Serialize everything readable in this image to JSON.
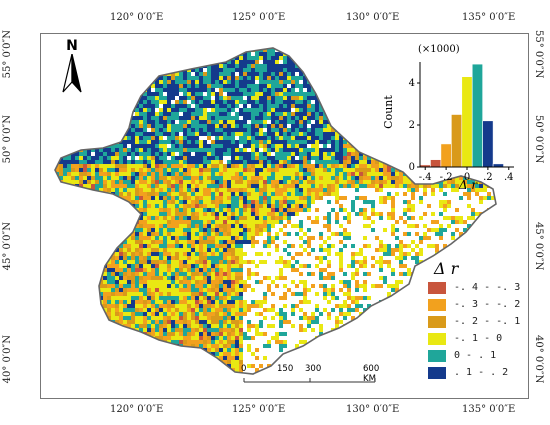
{
  "graticule": {
    "top_labels": [
      "120° 0′0″E",
      "125° 0′0″E",
      "130° 0′0″E",
      "135° 0′0″E"
    ],
    "bottom_labels": [
      "120° 0′0″E",
      "125° 0′0″E",
      "130° 0′0″E",
      "135° 0′0″E"
    ],
    "left_labels": [
      "55° 0′0″N",
      "50° 0′0″N",
      "45° 0′0″N",
      "40° 0′0″N"
    ],
    "right_labels": [
      "55° 0′0″N",
      "50° 0′0″N",
      "45° 0′0″N",
      "40° 0′0″N"
    ]
  },
  "north_arrow": {
    "label": "N",
    "icon": "north-arrow-icon"
  },
  "scale_bar": {
    "labels": [
      "0",
      "150",
      "300",
      "600 KM"
    ]
  },
  "legend": {
    "title": "Δ r",
    "items": [
      {
        "label": "-. 4 - -. 3",
        "color": "#c8553d"
      },
      {
        "label": "-. 3 - -. 2",
        "color": "#f2a11e"
      },
      {
        "label": "-. 2 - -. 1",
        "color": "#d99a1a"
      },
      {
        "label": "-. 1 - 0",
        "color": "#e9e813"
      },
      {
        "label": "0 - . 1",
        "color": "#1fa69a"
      },
      {
        "label": ". 1 - . 2",
        "color": "#143a8c"
      }
    ]
  },
  "chart_data": {
    "type": "bar",
    "title": "",
    "multiplier_label": "(×1000)",
    "xlabel": "Δ r",
    "ylabel": "Count",
    "x_ticks": [
      "-.4",
      "-.2",
      "0",
      ".2",
      ".4"
    ],
    "y_ticks": [
      "0",
      "2",
      "4"
    ],
    "ylim": [
      0,
      5
    ],
    "xlim": [
      -0.45,
      0.45
    ],
    "bin_width": 0.1,
    "bins": [
      {
        "center": -0.4,
        "value": 0.1,
        "color": "#c8553d"
      },
      {
        "center": -0.3,
        "value": 0.35,
        "color": "#c8553d"
      },
      {
        "center": -0.2,
        "value": 1.1,
        "color": "#f2a11e"
      },
      {
        "center": -0.1,
        "value": 2.5,
        "color": "#d99a1a"
      },
      {
        "center": 0.0,
        "value": 4.3,
        "color": "#e9e813"
      },
      {
        "center": 0.1,
        "value": 4.9,
        "color": "#1fa69a"
      },
      {
        "center": 0.2,
        "value": 2.2,
        "color": "#143a8c"
      },
      {
        "center": 0.3,
        "value": 0.15,
        "color": "#143a8c"
      }
    ]
  }
}
